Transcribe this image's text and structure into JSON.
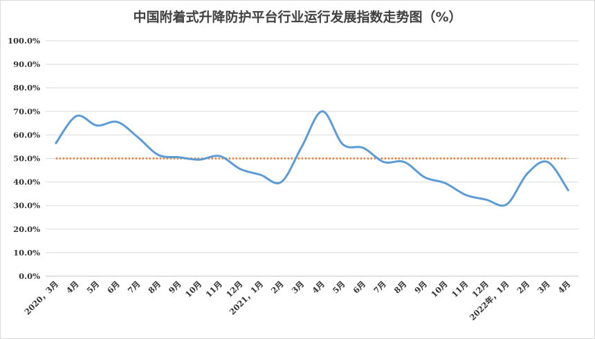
{
  "chart_data": {
    "type": "line",
    "title": "中国附着式升降防护平台行业运行发展指数走势图（%）",
    "categories": [
      "2020，3月",
      "4月",
      "5月",
      "6月",
      "7月",
      "8月",
      "9月",
      "10月",
      "11月",
      "12月",
      "2021，1月",
      "2月",
      "3月",
      "4月",
      "5月",
      "6月",
      "7月",
      "8月",
      "9月",
      "10月",
      "11月",
      "12月",
      "2022年，1月",
      "2月",
      "3月",
      "4月"
    ],
    "series": [
      {
        "values": [
          56.5,
          68.0,
          64.0,
          65.5,
          59.0,
          51.5,
          50.5,
          49.5,
          51.0,
          45.5,
          43.0,
          40.0,
          55.0,
          70.0,
          56.0,
          54.5,
          48.5,
          48.5,
          42.0,
          39.5,
          34.5,
          32.5,
          30.5,
          43.5,
          48.5,
          36.5
        ],
        "color": "#5b9bd5"
      }
    ],
    "reference_line": {
      "value": 50.0,
      "color": "#ed7d31",
      "style": "dotted"
    },
    "y_ticks": [
      "0.0%",
      "10.0%",
      "20.0%",
      "30.0%",
      "40.0%",
      "50.0%",
      "60.0%",
      "70.0%",
      "80.0%",
      "90.0%",
      "100.0%"
    ],
    "ylim": [
      0,
      100
    ],
    "grid": true,
    "legend": "none"
  }
}
